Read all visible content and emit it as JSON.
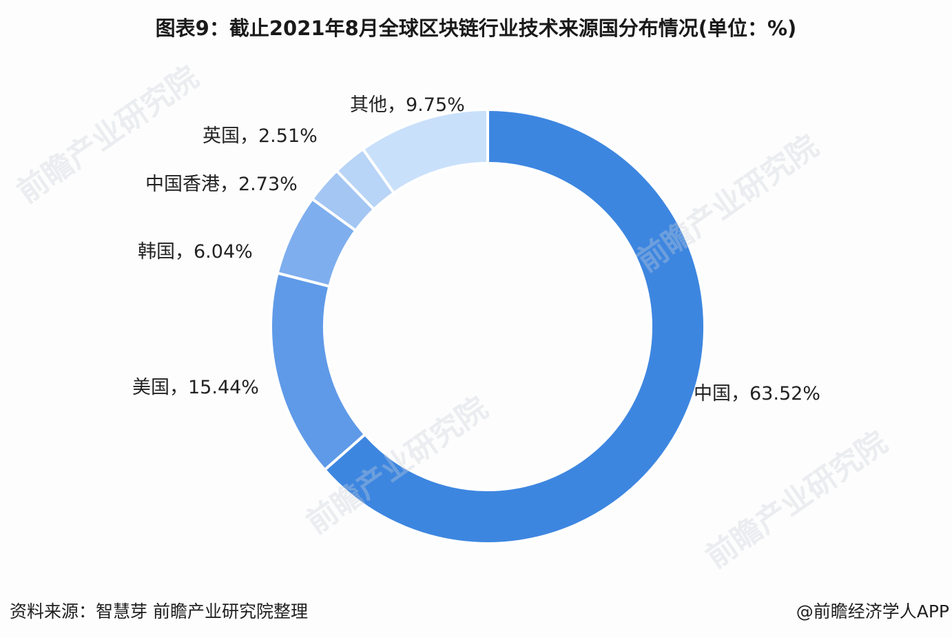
{
  "title": "图表9：截止2021年8月全球区块链行业技术来源国分布情况(单位：%)",
  "footer": {
    "source": "资料来源：智慧芽 前瞻产业研究院整理",
    "credit": "@前瞻经济学人APP"
  },
  "watermark": "前瞻产业研究院",
  "chart_data": {
    "type": "pie",
    "subtype": "donut",
    "title": "图表9：截止2021年8月全球区块链行业技术来源国分布情况(单位：%)",
    "unit": "%",
    "start_angle": "12 o'clock",
    "direction": "clockwise",
    "categories": [
      "中国",
      "美国",
      "韩国",
      "中国香港",
      "英国",
      "其他"
    ],
    "values": [
      63.52,
      15.44,
      6.04,
      2.73,
      2.51,
      9.75
    ],
    "colors": [
      "#3d86e0",
      "#5f9ae8",
      "#7eaeee",
      "#a3c6f3",
      "#b8d4f6",
      "#c9e0fa"
    ],
    "labels": [
      "中国，63.52%",
      "美国，15.44%",
      "韩国，6.04%",
      "中国香港，2.73%",
      "英国，2.51%",
      "其他，9.75%"
    ],
    "legend": "none (inline labels)"
  },
  "labels": {
    "china": "中国，63.52%",
    "us": "美国，15.44%",
    "korea": "韩国，6.04%",
    "hongkong": "中国香港，2.73%",
    "uk": "英国，2.51%",
    "other": "其他，9.75%"
  }
}
